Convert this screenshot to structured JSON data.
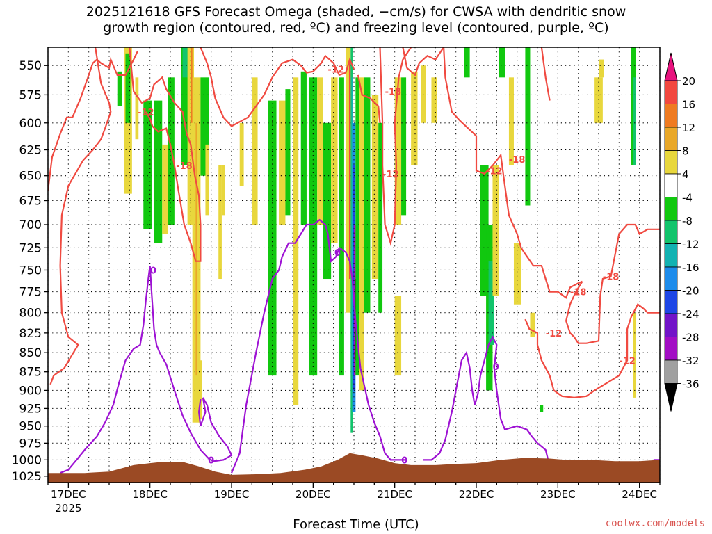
{
  "title_line1": "2025121618 GFS Forecast Omega (shaded, −cm/s) for CWSA with dendritic snow",
  "title_line2": "growth region (contoured, red, ºC) and freezing level (contoured, purple, ºC)",
  "credit": "coolwx.com/models",
  "chart_data": {
    "type": "heatmap",
    "title": "2025121618 GFS Forecast Omega (shaded, −cm/s) for CWSA with dendritic snow growth region (contoured, red, ºC) and freezing level (contoured, purple, ºC)",
    "xlabel": "Forecast Time (UTC)",
    "ylabel": "",
    "x_ticks": [
      "17DEC",
      "18DEC",
      "19DEC",
      "20DEC",
      "21DEC",
      "22DEC",
      "23DEC",
      "24DEC"
    ],
    "x_year_label": "2025",
    "x_range_days": [
      16.75,
      24.25
    ],
    "y_ticks": [
      550,
      575,
      600,
      625,
      650,
      675,
      700,
      725,
      750,
      775,
      800,
      825,
      850,
      875,
      900,
      925,
      950,
      975,
      1000,
      1025
    ],
    "y_range_hpa": [
      535,
      1035
    ],
    "y_scale": "log-pressure",
    "grid": true,
    "colorbar": {
      "labels": [
        "20",
        "16",
        "12",
        "8",
        "4",
        "-4",
        "-8",
        "-12",
        "-16",
        "-20",
        "-24",
        "-28",
        "-32",
        "-36"
      ],
      "colors": [
        "#f2483f",
        "#ef7b21",
        "#e9a829",
        "#e8d73d",
        "#ffffff",
        "#11c80f",
        "#12c46c",
        "#13b2b2",
        "#1e8ceb",
        "#1e46e6",
        "#7214c8",
        "#a20ec4",
        "#a0a0a0"
      ],
      "top_arrow": "#e8127e",
      "bottom_arrow": "#000000"
    },
    "series": [
      {
        "name": "dendritic snow growth region",
        "color": "#f04a41",
        "contour_labels": [
          "-12",
          "-18",
          "-12",
          "-18",
          "-12",
          "-12",
          "-18",
          "-18",
          "-18",
          "-12",
          "-12"
        ]
      },
      {
        "name": "freezing level",
        "color": "#9e12d4",
        "contour_labels": [
          "0",
          "0",
          "0",
          "0",
          "0"
        ]
      }
    ],
    "omega_cells": [
      {
        "x0": 17.68,
        "x1": 17.78,
        "p0": 535,
        "p1": 668,
        "v": 6
      },
      {
        "x0": 17.6,
        "x1": 17.66,
        "p0": 555,
        "p1": 585,
        "v": -6
      },
      {
        "x0": 17.7,
        "x1": 17.76,
        "p0": 540,
        "p1": 600,
        "v": -6
      },
      {
        "x0": 17.82,
        "x1": 17.86,
        "p0": 560,
        "p1": 615,
        "v": 6
      },
      {
        "x0": 17.92,
        "x1": 18.02,
        "p0": 580,
        "p1": 705,
        "v": -6
      },
      {
        "x0": 18.05,
        "x1": 18.15,
        "p0": 580,
        "p1": 720,
        "v": -6
      },
      {
        "x0": 18.15,
        "x1": 18.22,
        "p0": 620,
        "p1": 710,
        "v": 6
      },
      {
        "x0": 18.22,
        "x1": 18.3,
        "p0": 560,
        "p1": 700,
        "v": -6
      },
      {
        "x0": 18.38,
        "x1": 18.48,
        "p0": 535,
        "p1": 640,
        "v": -6
      },
      {
        "x0": 18.4,
        "x1": 18.46,
        "p0": 535,
        "p1": 560,
        "v": -10
      },
      {
        "x0": 18.46,
        "x1": 18.54,
        "p0": 535,
        "p1": 700,
        "v": 6
      },
      {
        "x0": 18.5,
        "x1": 18.52,
        "p0": 535,
        "p1": 600,
        "v": 12
      },
      {
        "x0": 18.52,
        "x1": 18.62,
        "p0": 560,
        "p1": 945,
        "v": 6
      },
      {
        "x0": 18.56,
        "x1": 18.58,
        "p0": 600,
        "p1": 880,
        "v": 10
      },
      {
        "x0": 18.62,
        "x1": 18.72,
        "p0": 560,
        "p1": 650,
        "v": -6
      },
      {
        "x0": 18.68,
        "x1": 18.72,
        "p0": 620,
        "p1": 690,
        "v": 6
      },
      {
        "x0": 18.88,
        "x1": 18.92,
        "p0": 640,
        "p1": 690,
        "v": 6
      },
      {
        "x0": 18.6,
        "x1": 18.64,
        "p0": 860,
        "p1": 940,
        "v": 6
      },
      {
        "x0": 18.84,
        "x1": 18.88,
        "p0": 640,
        "p1": 760,
        "v": 6
      },
      {
        "x0": 19.1,
        "x1": 19.15,
        "p0": 600,
        "p1": 660,
        "v": 6
      },
      {
        "x0": 19.25,
        "x1": 19.32,
        "p0": 560,
        "p1": 700,
        "v": 6
      },
      {
        "x0": 19.45,
        "x1": 19.55,
        "p0": 580,
        "p1": 880,
        "v": -6
      },
      {
        "x0": 19.58,
        "x1": 19.66,
        "p0": 580,
        "p1": 700,
        "v": 6
      },
      {
        "x0": 19.66,
        "x1": 19.72,
        "p0": 570,
        "p1": 690,
        "v": -6
      },
      {
        "x0": 19.75,
        "x1": 19.82,
        "p0": 560,
        "p1": 920,
        "v": 6
      },
      {
        "x0": 19.85,
        "x1": 19.92,
        "p0": 555,
        "p1": 700,
        "v": -6
      },
      {
        "x0": 19.95,
        "x1": 20.05,
        "p0": 560,
        "p1": 880,
        "v": -6
      },
      {
        "x0": 20.05,
        "x1": 20.12,
        "p0": 560,
        "p1": 700,
        "v": 6
      },
      {
        "x0": 20.12,
        "x1": 20.22,
        "p0": 600,
        "p1": 760,
        "v": -6
      },
      {
        "x0": 20.22,
        "x1": 20.3,
        "p0": 560,
        "p1": 720,
        "v": 6
      },
      {
        "x0": 20.32,
        "x1": 20.38,
        "p0": 560,
        "p1": 880,
        "v": -6
      },
      {
        "x0": 20.4,
        "x1": 20.46,
        "p0": 535,
        "p1": 800,
        "v": 6
      },
      {
        "x0": 20.44,
        "x1": 20.46,
        "p0": 545,
        "p1": 760,
        "v": 18
      },
      {
        "x0": 20.46,
        "x1": 20.49,
        "p0": 535,
        "p1": 960,
        "v": -10
      },
      {
        "x0": 20.47,
        "x1": 20.49,
        "p0": 560,
        "p1": 880,
        "v": -14
      },
      {
        "x0": 20.48,
        "x1": 20.52,
        "p0": 600,
        "p1": 930,
        "v": -18
      },
      {
        "x0": 20.49,
        "x1": 20.51,
        "p0": 640,
        "p1": 900,
        "v": -22
      },
      {
        "x0": 20.5,
        "x1": 20.52,
        "p0": 700,
        "p1": 880,
        "v": -30
      },
      {
        "x0": 20.51,
        "x1": 20.52,
        "p0": 760,
        "p1": 860,
        "v": -40
      },
      {
        "x0": 20.52,
        "x1": 20.56,
        "p0": 560,
        "p1": 880,
        "v": -6
      },
      {
        "x0": 20.56,
        "x1": 20.62,
        "p0": 560,
        "p1": 900,
        "v": 6
      },
      {
        "x0": 20.62,
        "x1": 20.7,
        "p0": 560,
        "p1": 800,
        "v": -6
      },
      {
        "x0": 20.72,
        "x1": 20.8,
        "p0": 575,
        "p1": 760,
        "v": 6
      },
      {
        "x0": 20.8,
        "x1": 20.85,
        "p0": 600,
        "p1": 800,
        "v": -6
      },
      {
        "x0": 21.0,
        "x1": 21.08,
        "p0": 560,
        "p1": 700,
        "v": 6
      },
      {
        "x0": 21.0,
        "x1": 21.08,
        "p0": 780,
        "p1": 880,
        "v": 6
      },
      {
        "x0": 21.08,
        "x1": 21.14,
        "p0": 560,
        "p1": 690,
        "v": -6
      },
      {
        "x0": 21.2,
        "x1": 21.28,
        "p0": 555,
        "p1": 640,
        "v": 6
      },
      {
        "x0": 21.32,
        "x1": 21.38,
        "p0": 550,
        "p1": 600,
        "v": 6
      },
      {
        "x0": 21.45,
        "x1": 21.52,
        "p0": 560,
        "p1": 600,
        "v": 6
      },
      {
        "x0": 21.85,
        "x1": 21.92,
        "p0": 535,
        "p1": 560,
        "v": -6
      },
      {
        "x0": 22.05,
        "x1": 22.15,
        "p0": 640,
        "p1": 780,
        "v": -6
      },
      {
        "x0": 22.12,
        "x1": 22.2,
        "p0": 700,
        "p1": 900,
        "v": -6
      },
      {
        "x0": 22.15,
        "x1": 22.22,
        "p0": 740,
        "p1": 840,
        "v": -10
      },
      {
        "x0": 22.2,
        "x1": 22.28,
        "p0": 640,
        "p1": 780,
        "v": 6
      },
      {
        "x0": 22.28,
        "x1": 22.35,
        "p0": 535,
        "p1": 560,
        "v": -6
      },
      {
        "x0": 22.4,
        "x1": 22.46,
        "p0": 560,
        "p1": 640,
        "v": 6
      },
      {
        "x0": 22.46,
        "x1": 22.55,
        "p0": 720,
        "p1": 790,
        "v": 6
      },
      {
        "x0": 22.6,
        "x1": 22.66,
        "p0": 535,
        "p1": 680,
        "v": -6
      },
      {
        "x0": 22.66,
        "x1": 22.72,
        "p0": 800,
        "p1": 830,
        "v": 6
      },
      {
        "x0": 22.78,
        "x1": 22.82,
        "p0": 920,
        "p1": 930,
        "v": -6
      },
      {
        "x0": 23.5,
        "x1": 23.56,
        "p0": 545,
        "p1": 560,
        "v": 6
      },
      {
        "x0": 23.45,
        "x1": 23.55,
        "p0": 560,
        "p1": 600,
        "v": 6
      },
      {
        "x0": 23.9,
        "x1": 23.96,
        "p0": 535,
        "p1": 640,
        "v": -6
      },
      {
        "x0": 23.92,
        "x1": 23.96,
        "p0": 560,
        "p1": 640,
        "v": -10
      },
      {
        "x0": 23.92,
        "x1": 23.96,
        "p0": 800,
        "p1": 910,
        "v": 6
      }
    ]
  }
}
